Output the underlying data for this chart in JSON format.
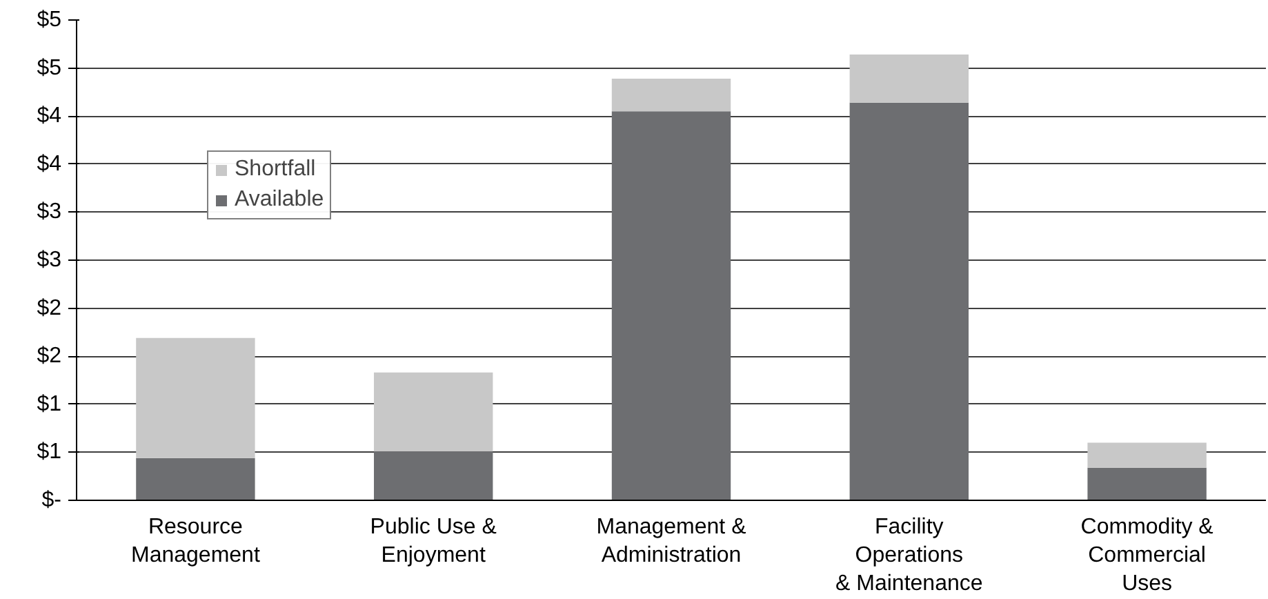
{
  "chart_data": {
    "type": "bar",
    "stacked": true,
    "categories": [
      "Resource\nManagement",
      "Public Use &\nEnjoyment",
      "Management &\nAdministration",
      "Facility\nOperations\n& Maintenance",
      "Commodity &\nCommercial\nUses"
    ],
    "series": [
      {
        "name": "Available",
        "color": "#6d6e71",
        "values": [
          0.44,
          0.51,
          4.05,
          4.14,
          0.34
        ]
      },
      {
        "name": "Shortfall",
        "color": "#c8c8c8",
        "values": [
          1.25,
          0.82,
          0.34,
          0.5,
          0.26
        ]
      }
    ],
    "ylim": [
      0,
      5
    ],
    "yticks": [
      {
        "value": 0,
        "label": "$-"
      },
      {
        "value": 0.5,
        "label": "$1"
      },
      {
        "value": 1,
        "label": "$1"
      },
      {
        "value": 1.5,
        "label": "$2"
      },
      {
        "value": 2,
        "label": "$2"
      },
      {
        "value": 2.5,
        "label": "$3"
      },
      {
        "value": 3,
        "label": "$3"
      },
      {
        "value": 3.5,
        "label": "$4"
      },
      {
        "value": 4,
        "label": "$4"
      },
      {
        "value": 4.5,
        "label": "$5"
      },
      {
        "value": 5,
        "label": "$5"
      }
    ],
    "grid": "y",
    "legend": "top left"
  }
}
